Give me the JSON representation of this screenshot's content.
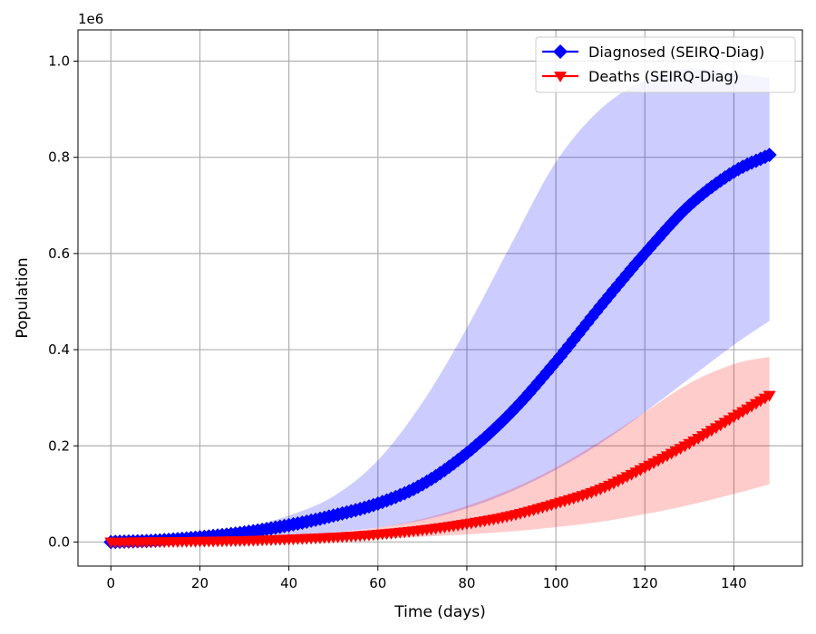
{
  "chart_data": {
    "type": "line",
    "title": "",
    "xlabel": "Time (days)",
    "ylabel": "Population",
    "y_offset_label": "1e6",
    "xlim": [
      -7.4,
      155.4
    ],
    "ylim": [
      -0.05,
      1.065
    ],
    "x_ticks": [
      0,
      20,
      40,
      60,
      80,
      100,
      120,
      140
    ],
    "x_tick_labels": [
      "0",
      "20",
      "40",
      "60",
      "80",
      "100",
      "120",
      "140"
    ],
    "y_ticks": [
      0.0,
      0.2,
      0.4,
      0.6,
      0.8,
      1.0
    ],
    "y_tick_labels": [
      "0.0",
      "0.2",
      "0.4",
      "0.6",
      "0.8",
      "1.0"
    ],
    "y_unit_multiplier": 1000000,
    "grid": true,
    "legend_position": "top-right",
    "series": [
      {
        "name": "Diagnosed (SEIRQ-Diag)",
        "color": "#0000ff",
        "band_color": "#0000ff",
        "marker": "diamond",
        "x": [
          0,
          10,
          20,
          30,
          40,
          50,
          60,
          70,
          80,
          90,
          100,
          110,
          120,
          130,
          140,
          148
        ],
        "y": [
          0.0,
          0.003,
          0.01,
          0.02,
          0.035,
          0.055,
          0.08,
          0.12,
          0.185,
          0.27,
          0.375,
          0.49,
          0.6,
          0.7,
          0.77,
          0.805
        ],
        "band_lower": [
          0.0,
          0.0015,
          0.005,
          0.009,
          0.014,
          0.02,
          0.03,
          0.045,
          0.07,
          0.105,
          0.15,
          0.205,
          0.27,
          0.34,
          0.41,
          0.46
        ],
        "band_upper": [
          0.0,
          0.005,
          0.015,
          0.03,
          0.055,
          0.095,
          0.17,
          0.29,
          0.445,
          0.62,
          0.79,
          0.9,
          0.96,
          0.985,
          0.975,
          0.965
        ]
      },
      {
        "name": "Deaths (SEIRQ-Diag)",
        "color": "#ff0000",
        "band_color": "#ff0000",
        "marker": "triangle-down",
        "x": [
          0,
          10,
          20,
          30,
          40,
          50,
          60,
          70,
          80,
          90,
          100,
          110,
          120,
          130,
          140,
          148
        ],
        "y": [
          0.0,
          0.0005,
          0.0015,
          0.003,
          0.006,
          0.01,
          0.016,
          0.025,
          0.038,
          0.055,
          0.08,
          0.11,
          0.155,
          0.205,
          0.26,
          0.305
        ],
        "band_lower": [
          0.0,
          0.0003,
          0.0008,
          0.0015,
          0.003,
          0.005,
          0.007,
          0.011,
          0.016,
          0.022,
          0.031,
          0.042,
          0.058,
          0.077,
          0.1,
          0.12
        ],
        "band_upper": [
          0.0,
          0.0008,
          0.0025,
          0.0055,
          0.0105,
          0.018,
          0.03,
          0.048,
          0.075,
          0.11,
          0.155,
          0.21,
          0.27,
          0.33,
          0.37,
          0.385
        ]
      }
    ]
  }
}
